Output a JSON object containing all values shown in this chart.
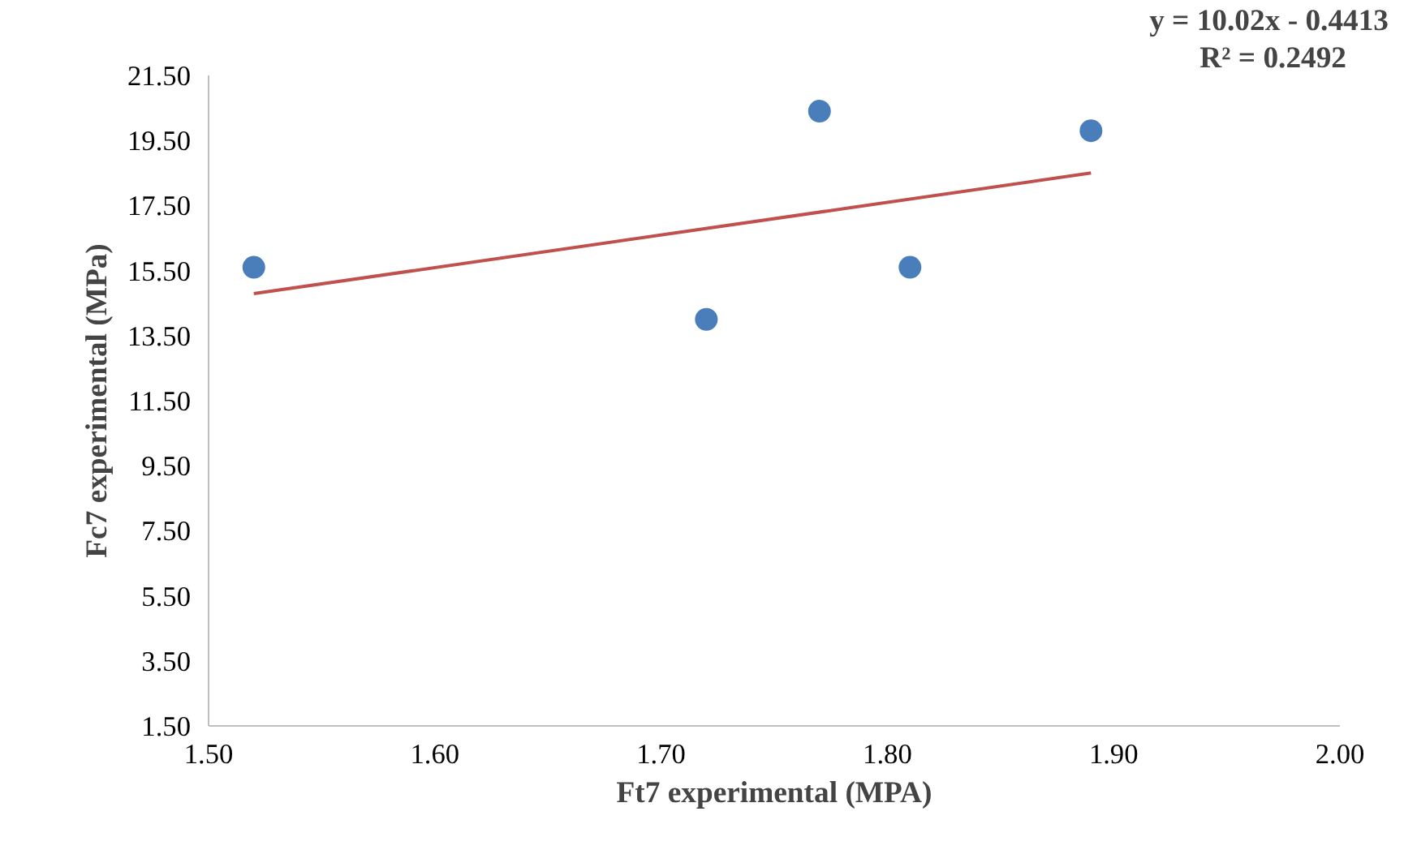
{
  "chart_data": {
    "type": "scatter",
    "xlabel": "Ft7 experimental (MPA)",
    "ylabel": "Fc7 experimental (MPa)",
    "x": [
      1.52,
      1.72,
      1.77,
      1.81,
      1.89
    ],
    "series": [
      {
        "color": "#4a7ebb",
        "values": [
          15.6,
          14.0,
          20.4,
          15.6,
          19.8
        ],
        "marker": "circle"
      },
      {
        "type": "line",
        "color": "#c0504d",
        "x": [
          1.52,
          1.89
        ],
        "values": [
          14.79,
          18.5
        ]
      }
    ],
    "xlim": [
      1.5,
      2.0
    ],
    "ylim": [
      1.5,
      21.5
    ],
    "xticks": [
      {
        "value": 1.5,
        "label": "1.50"
      },
      {
        "value": 1.6,
        "label": "1.60"
      },
      {
        "value": 1.7,
        "label": "1.70"
      },
      {
        "value": 1.8,
        "label": "1.80"
      },
      {
        "value": 1.9,
        "label": "1.90"
      },
      {
        "value": 2.0,
        "label": "2.00"
      }
    ],
    "yticks": [
      {
        "value": 1.5,
        "label": "1.50"
      },
      {
        "value": 3.5,
        "label": "3.50"
      },
      {
        "value": 5.5,
        "label": "5.50"
      },
      {
        "value": 7.5,
        "label": "7.50"
      },
      {
        "value": 9.5,
        "label": "9.50"
      },
      {
        "value": 11.5,
        "label": "11.50"
      },
      {
        "value": 13.5,
        "label": "13.50"
      },
      {
        "value": 15.5,
        "label": "15.50"
      },
      {
        "value": 17.5,
        "label": "17.50"
      },
      {
        "value": 19.5,
        "label": "19.50"
      },
      {
        "value": 21.5,
        "label": "21.50"
      }
    ],
    "annotations": [
      "y = 10.02x - 0.4413",
      "R² = 0.2492"
    ],
    "grid": false
  }
}
